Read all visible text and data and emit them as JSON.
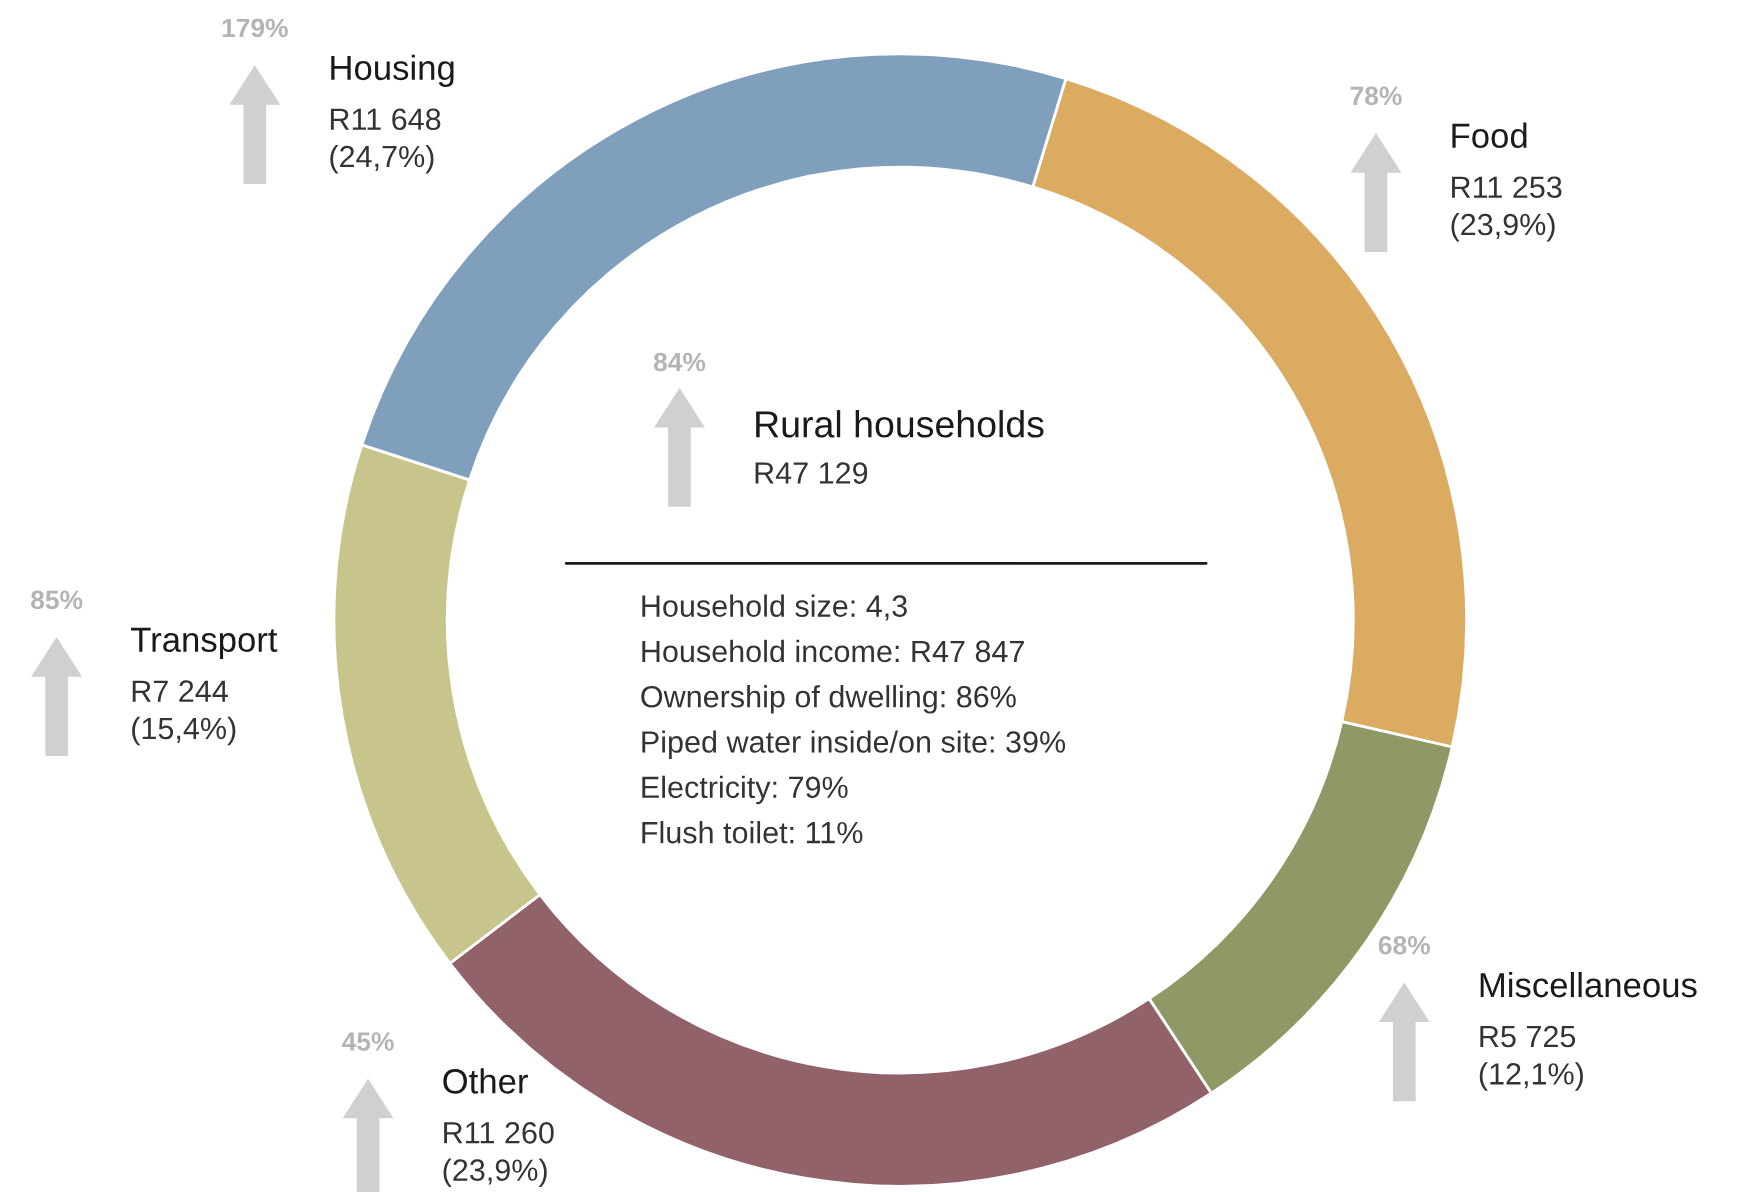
{
  "chart_data": {
    "type": "donut",
    "title": "Rural households",
    "subtitle": "R47 129",
    "categories": [
      "Food",
      "Miscellaneous",
      "Other",
      "Transport",
      "Housing"
    ],
    "values": [
      11253,
      5725,
      11260,
      7244,
      11648
    ],
    "colors": [
      "#dbab62",
      "#8e9966",
      "#91626a",
      "#c8c58c",
      "#7f9fbd"
    ],
    "value_labels": [
      "R11 253\n(23,9%)",
      "R5 725\n(12,1%)",
      "R11 260\n(23,9%)",
      "R7 244\n(15,4%)",
      "R11 648\n(24,7%)"
    ],
    "annotations": [
      "78%",
      "68%",
      "45%",
      "85%",
      "179%",
      "84%",
      "Household size: 4,3",
      "Household income: R47 847",
      "Ownership of dwelling: 86%",
      "Piped water inside/on site: 39%",
      "Electricity: 79%",
      "Flush toilet: 11%"
    ]
  }
}
